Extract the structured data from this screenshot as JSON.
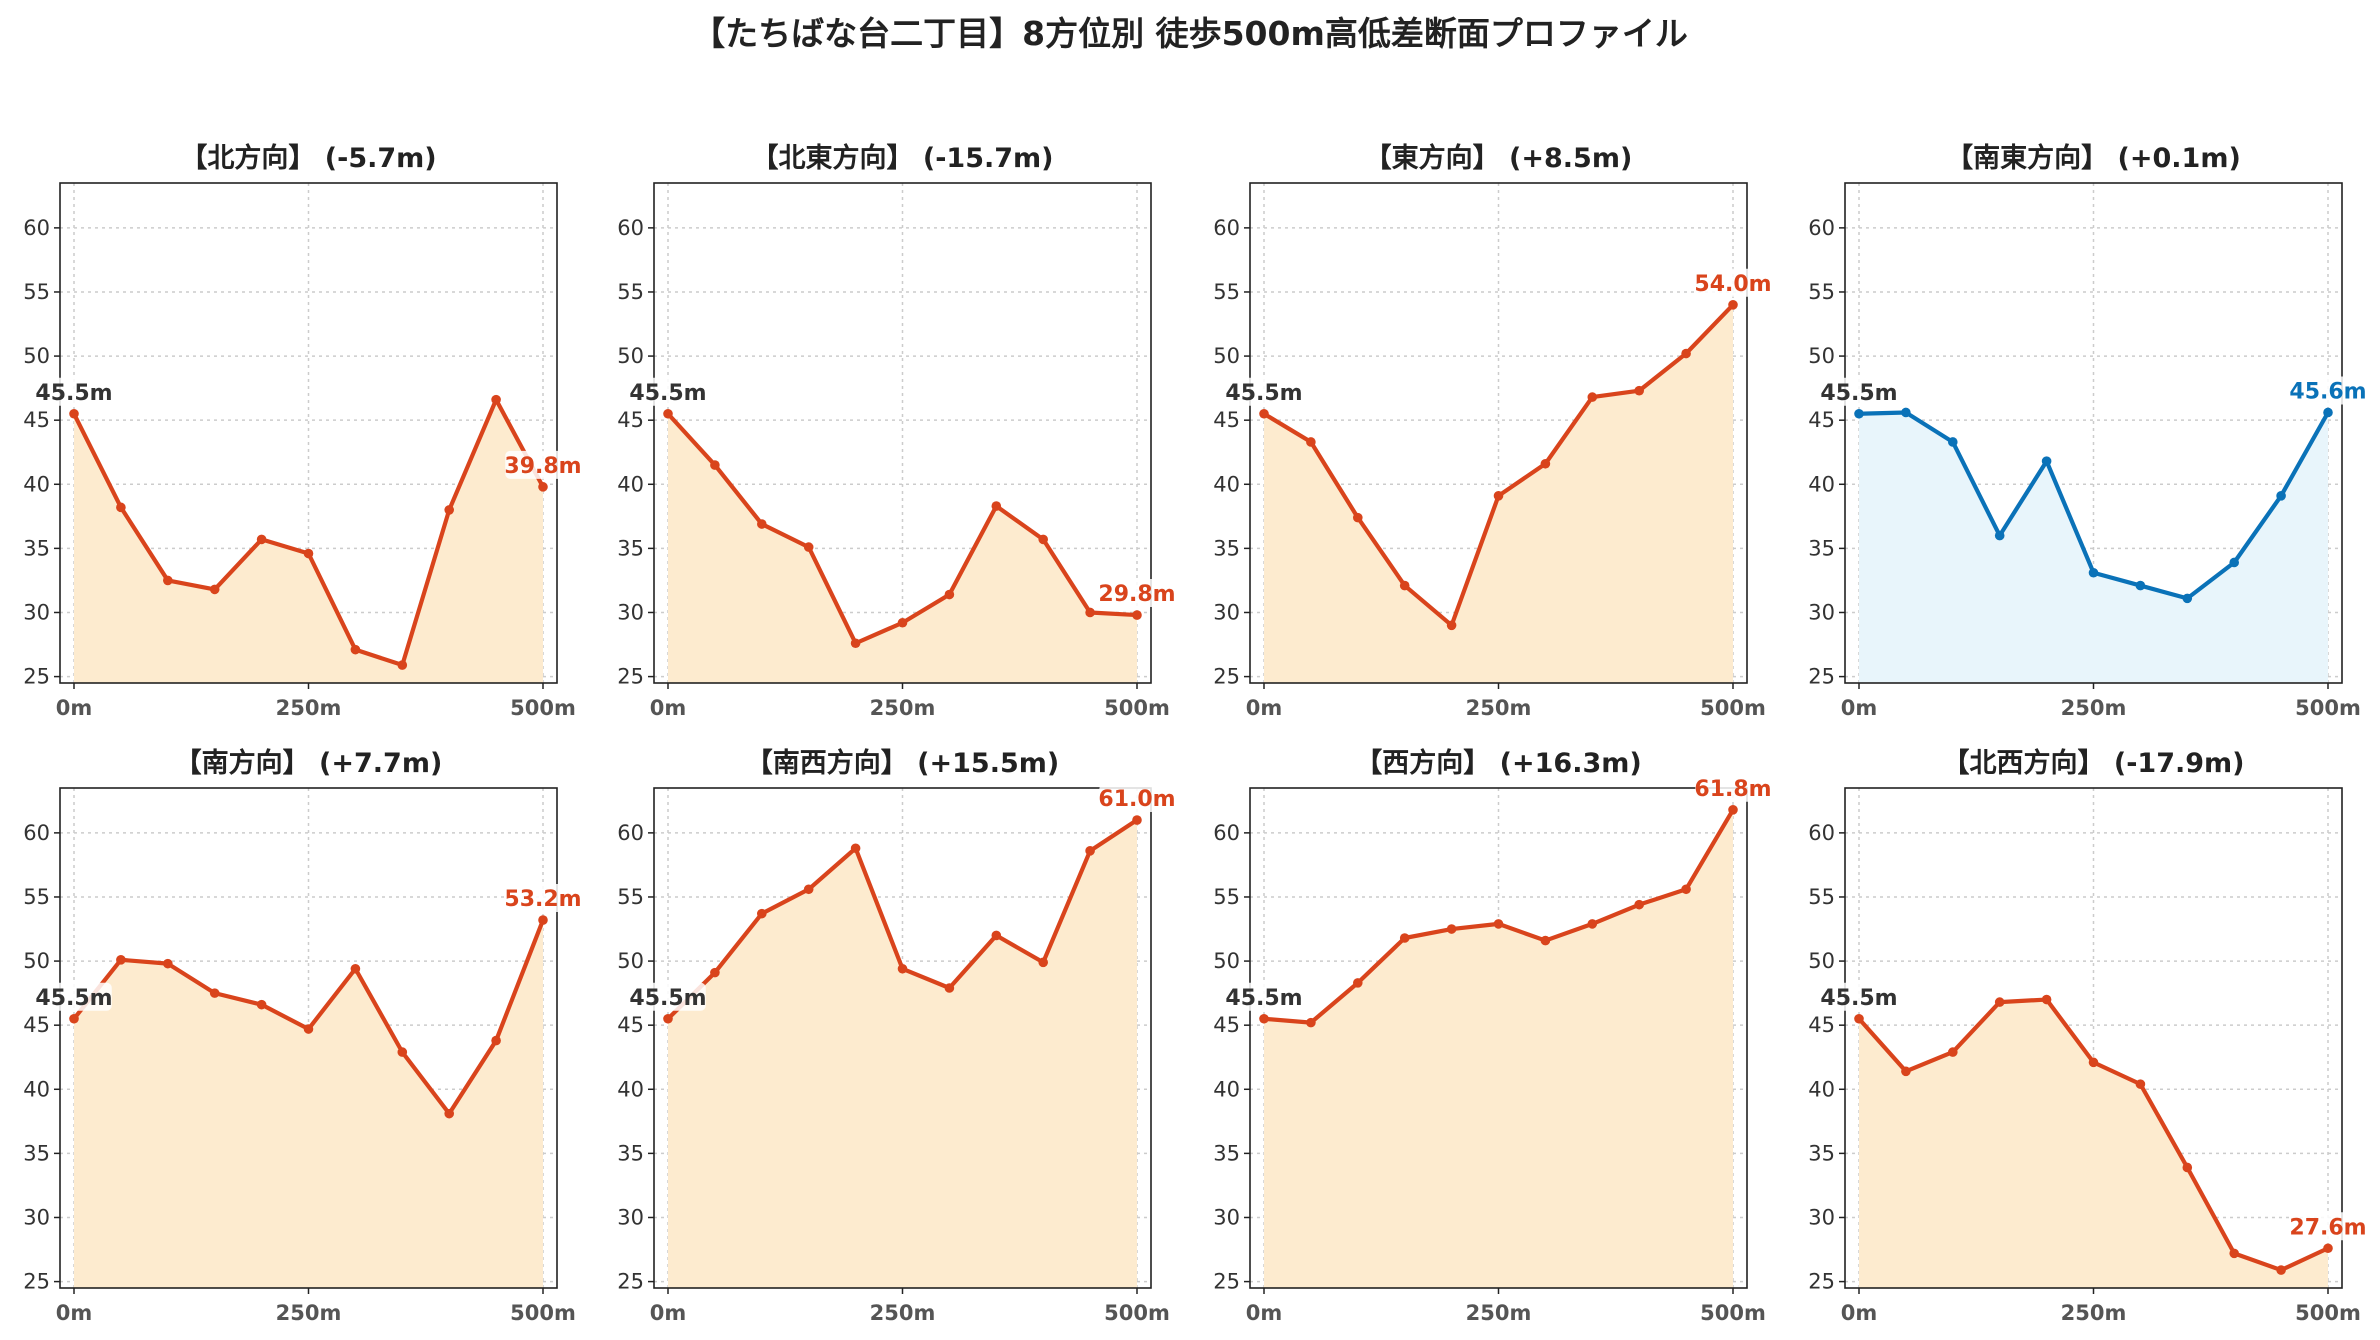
{
  "title": "【たちばな台二丁目】8方位別 徒歩500m高低差断面プロファイル",
  "colors": {
    "descent_line": "#d9441c",
    "descent_fill": "#fdebcf",
    "flat_line": "#0a72b8",
    "flat_fill": "#e8f5fb",
    "start_label": "#333333"
  },
  "chart_data": [
    {
      "type": "area",
      "title": "【北方向】 (-5.7m)",
      "x": [
        0,
        50,
        100,
        150,
        200,
        250,
        300,
        350,
        400,
        450,
        500
      ],
      "y": [
        45.5,
        38.2,
        32.5,
        31.8,
        35.7,
        34.6,
        27.1,
        25.9,
        38.0,
        46.6,
        39.8
      ],
      "xticks": [
        "0m",
        "250m",
        "500m"
      ],
      "ylim": [
        24.5,
        63.5
      ],
      "yticks": [
        25,
        30,
        35,
        40,
        45,
        50,
        55,
        60
      ],
      "start_label": "45.5m",
      "end_label": "39.8m",
      "style": "orange",
      "grid": true
    },
    {
      "type": "area",
      "title": "【北東方向】 (-15.7m)",
      "x": [
        0,
        50,
        100,
        150,
        200,
        250,
        300,
        350,
        400,
        450,
        500
      ],
      "y": [
        45.5,
        41.5,
        36.9,
        35.1,
        27.6,
        29.2,
        31.4,
        38.3,
        35.7,
        30.0,
        29.8
      ],
      "xticks": [
        "0m",
        "250m",
        "500m"
      ],
      "ylim": [
        24.5,
        63.5
      ],
      "yticks": [
        25,
        30,
        35,
        40,
        45,
        50,
        55,
        60
      ],
      "start_label": "45.5m",
      "end_label": "29.8m",
      "style": "orange",
      "grid": true
    },
    {
      "type": "area",
      "title": "【東方向】 (+8.5m)",
      "x": [
        0,
        50,
        100,
        150,
        200,
        250,
        300,
        350,
        400,
        450,
        500
      ],
      "y": [
        45.5,
        43.3,
        37.4,
        32.1,
        29.0,
        39.1,
        41.6,
        46.8,
        47.3,
        50.2,
        54.0
      ],
      "xticks": [
        "0m",
        "250m",
        "500m"
      ],
      "ylim": [
        24.5,
        63.5
      ],
      "yticks": [
        25,
        30,
        35,
        40,
        45,
        50,
        55,
        60
      ],
      "start_label": "45.5m",
      "end_label": "54.0m",
      "style": "orange",
      "grid": true
    },
    {
      "type": "area",
      "title": "【南東方向】 (+0.1m)",
      "x": [
        0,
        50,
        100,
        150,
        200,
        250,
        300,
        350,
        400,
        450,
        500
      ],
      "y": [
        45.5,
        45.6,
        43.3,
        36.0,
        41.8,
        33.1,
        32.1,
        31.1,
        33.9,
        39.1,
        45.6
      ],
      "xticks": [
        "0m",
        "250m",
        "500m"
      ],
      "ylim": [
        24.5,
        63.5
      ],
      "yticks": [
        25,
        30,
        35,
        40,
        45,
        50,
        55,
        60
      ],
      "start_label": "45.5m",
      "end_label": "45.6m",
      "style": "blue",
      "grid": true
    },
    {
      "type": "area",
      "title": "【南方向】 (+7.7m)",
      "x": [
        0,
        50,
        100,
        150,
        200,
        250,
        300,
        350,
        400,
        450,
        500
      ],
      "y": [
        45.5,
        50.1,
        49.8,
        47.5,
        46.6,
        44.7,
        49.4,
        42.9,
        38.1,
        43.8,
        53.2
      ],
      "xticks": [
        "0m",
        "250m",
        "500m"
      ],
      "ylim": [
        24.5,
        63.5
      ],
      "yticks": [
        25,
        30,
        35,
        40,
        45,
        50,
        55,
        60
      ],
      "start_label": "45.5m",
      "end_label": "53.2m",
      "style": "orange",
      "grid": true
    },
    {
      "type": "area",
      "title": "【南西方向】 (+15.5m)",
      "x": [
        0,
        50,
        100,
        150,
        200,
        250,
        300,
        350,
        400,
        450,
        500
      ],
      "y": [
        45.5,
        49.1,
        53.7,
        55.6,
        58.8,
        49.4,
        47.9,
        52.0,
        49.9,
        58.6,
        61.0
      ],
      "xticks": [
        "0m",
        "250m",
        "500m"
      ],
      "ylim": [
        24.5,
        63.5
      ],
      "yticks": [
        25,
        30,
        35,
        40,
        45,
        50,
        55,
        60
      ],
      "start_label": "45.5m",
      "end_label": "61.0m",
      "style": "orange",
      "grid": true
    },
    {
      "type": "area",
      "title": "【西方向】 (+16.3m)",
      "x": [
        0,
        50,
        100,
        150,
        200,
        250,
        300,
        350,
        400,
        450,
        500
      ],
      "y": [
        45.5,
        45.2,
        48.3,
        51.8,
        52.5,
        52.9,
        51.6,
        52.9,
        54.4,
        55.6,
        61.8
      ],
      "xticks": [
        "0m",
        "250m",
        "500m"
      ],
      "ylim": [
        24.5,
        63.5
      ],
      "yticks": [
        25,
        30,
        35,
        40,
        45,
        50,
        55,
        60
      ],
      "start_label": "45.5m",
      "end_label": "61.8m",
      "style": "orange",
      "grid": true
    },
    {
      "type": "area",
      "title": "【北西方向】 (-17.9m)",
      "x": [
        0,
        50,
        100,
        150,
        200,
        250,
        300,
        350,
        400,
        450,
        500
      ],
      "y": [
        45.5,
        41.4,
        42.9,
        46.8,
        47.0,
        42.1,
        40.4,
        33.9,
        27.2,
        25.9,
        27.6
      ],
      "xticks": [
        "0m",
        "250m",
        "500m"
      ],
      "ylim": [
        24.5,
        63.5
      ],
      "yticks": [
        25,
        30,
        35,
        40,
        45,
        50,
        55,
        60
      ],
      "start_label": "45.5m",
      "end_label": "27.6m",
      "style": "orange",
      "grid": true
    }
  ]
}
